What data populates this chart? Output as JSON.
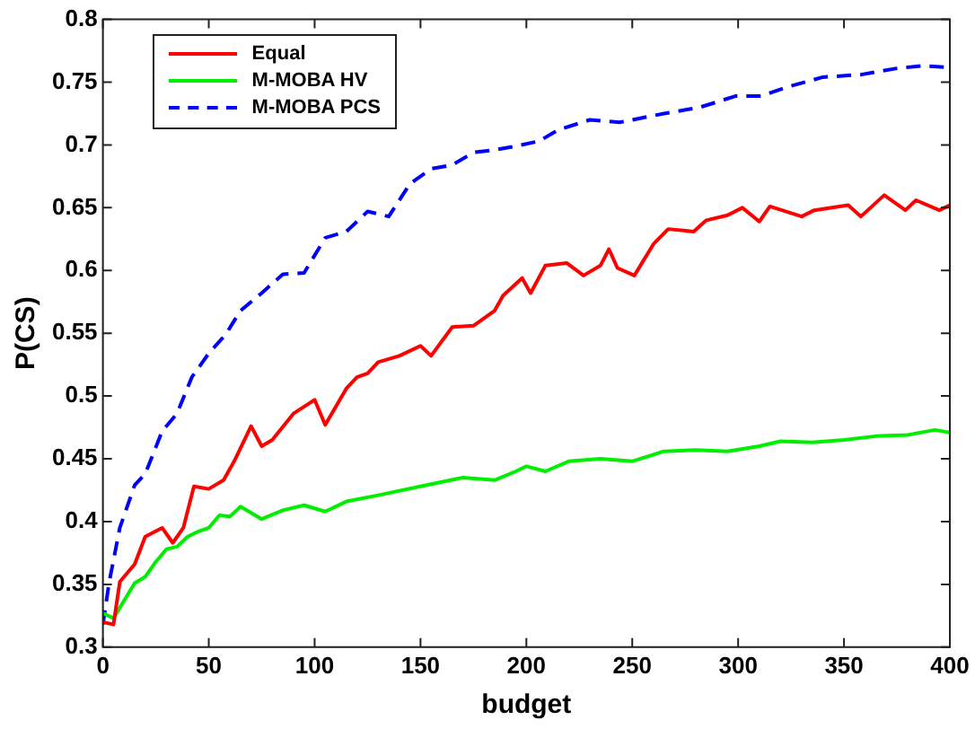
{
  "chart_data": {
    "type": "line",
    "xlabel": "budget",
    "ylabel": "P(CS)",
    "xlim": [
      0,
      400
    ],
    "ylim": [
      0.3,
      0.8
    ],
    "xticks": [
      0,
      50,
      100,
      150,
      200,
      250,
      300,
      350,
      400
    ],
    "yticks": [
      0.3,
      0.35,
      0.4,
      0.45,
      0.5,
      0.55,
      0.6,
      0.65,
      0.7,
      0.75,
      0.8
    ],
    "grid": false,
    "legend": "top left",
    "marker": "none",
    "series": [
      {
        "name": "Equal",
        "color": "#ff0000",
        "line_style": "solid",
        "x": [
          0,
          5,
          8,
          15,
          20,
          28,
          33,
          38,
          43,
          50,
          57,
          62,
          70,
          75,
          80,
          90,
          100,
          105,
          115,
          120,
          125,
          130,
          140,
          150,
          155,
          165,
          175,
          185,
          189,
          198,
          202,
          209,
          219,
          227,
          235,
          239,
          243,
          251,
          260,
          267,
          279,
          285,
          295,
          302,
          310,
          315,
          330,
          336,
          352,
          358,
          369,
          379,
          384,
          395,
          400
        ],
        "values": [
          0.32,
          0.318,
          0.352,
          0.366,
          0.388,
          0.395,
          0.383,
          0.395,
          0.428,
          0.426,
          0.433,
          0.448,
          0.476,
          0.46,
          0.465,
          0.486,
          0.497,
          0.477,
          0.506,
          0.515,
          0.518,
          0.527,
          0.532,
          0.54,
          0.532,
          0.555,
          0.556,
          0.568,
          0.58,
          0.594,
          0.582,
          0.604,
          0.606,
          0.596,
          0.604,
          0.617,
          0.602,
          0.596,
          0.621,
          0.633,
          0.631,
          0.64,
          0.644,
          0.65,
          0.639,
          0.651,
          0.643,
          0.648,
          0.652,
          0.643,
          0.66,
          0.648,
          0.656,
          0.648,
          0.652
        ]
      },
      {
        "name": "M-MOBA HV",
        "color": "#00ee00",
        "line_style": "solid",
        "x": [
          0,
          5,
          10,
          15,
          20,
          25,
          30,
          35,
          40,
          45,
          50,
          55,
          60,
          65,
          75,
          85,
          95,
          105,
          115,
          130,
          150,
          170,
          185,
          195,
          200,
          209,
          220,
          235,
          250,
          265,
          280,
          295,
          310,
          320,
          335,
          350,
          365,
          380,
          393,
          400
        ],
        "values": [
          0.327,
          0.323,
          0.337,
          0.351,
          0.356,
          0.368,
          0.378,
          0.38,
          0.388,
          0.392,
          0.395,
          0.405,
          0.404,
          0.412,
          0.402,
          0.409,
          0.413,
          0.408,
          0.416,
          0.421,
          0.428,
          0.435,
          0.433,
          0.44,
          0.444,
          0.44,
          0.448,
          0.45,
          0.448,
          0.456,
          0.457,
          0.456,
          0.46,
          0.464,
          0.463,
          0.465,
          0.468,
          0.469,
          0.473,
          0.471
        ]
      },
      {
        "name": "M-MOBA PCS",
        "color": "#0000ff",
        "line_style": "dashed",
        "x": [
          0,
          3,
          8,
          15,
          20,
          28,
          35,
          42,
          50,
          58,
          65,
          75,
          85,
          95,
          105,
          115,
          125,
          135,
          145,
          155,
          165,
          175,
          185,
          195,
          206,
          215,
          230,
          244,
          265,
          282,
          299,
          311,
          323,
          340,
          358,
          375,
          387,
          398
        ],
        "values": [
          0.318,
          0.352,
          0.395,
          0.429,
          0.438,
          0.472,
          0.486,
          0.515,
          0.534,
          0.549,
          0.568,
          0.582,
          0.597,
          0.598,
          0.626,
          0.631,
          0.647,
          0.643,
          0.669,
          0.681,
          0.684,
          0.694,
          0.696,
          0.699,
          0.703,
          0.712,
          0.72,
          0.718,
          0.725,
          0.73,
          0.739,
          0.739,
          0.746,
          0.754,
          0.756,
          0.761,
          0.763,
          0.762
        ]
      }
    ]
  }
}
